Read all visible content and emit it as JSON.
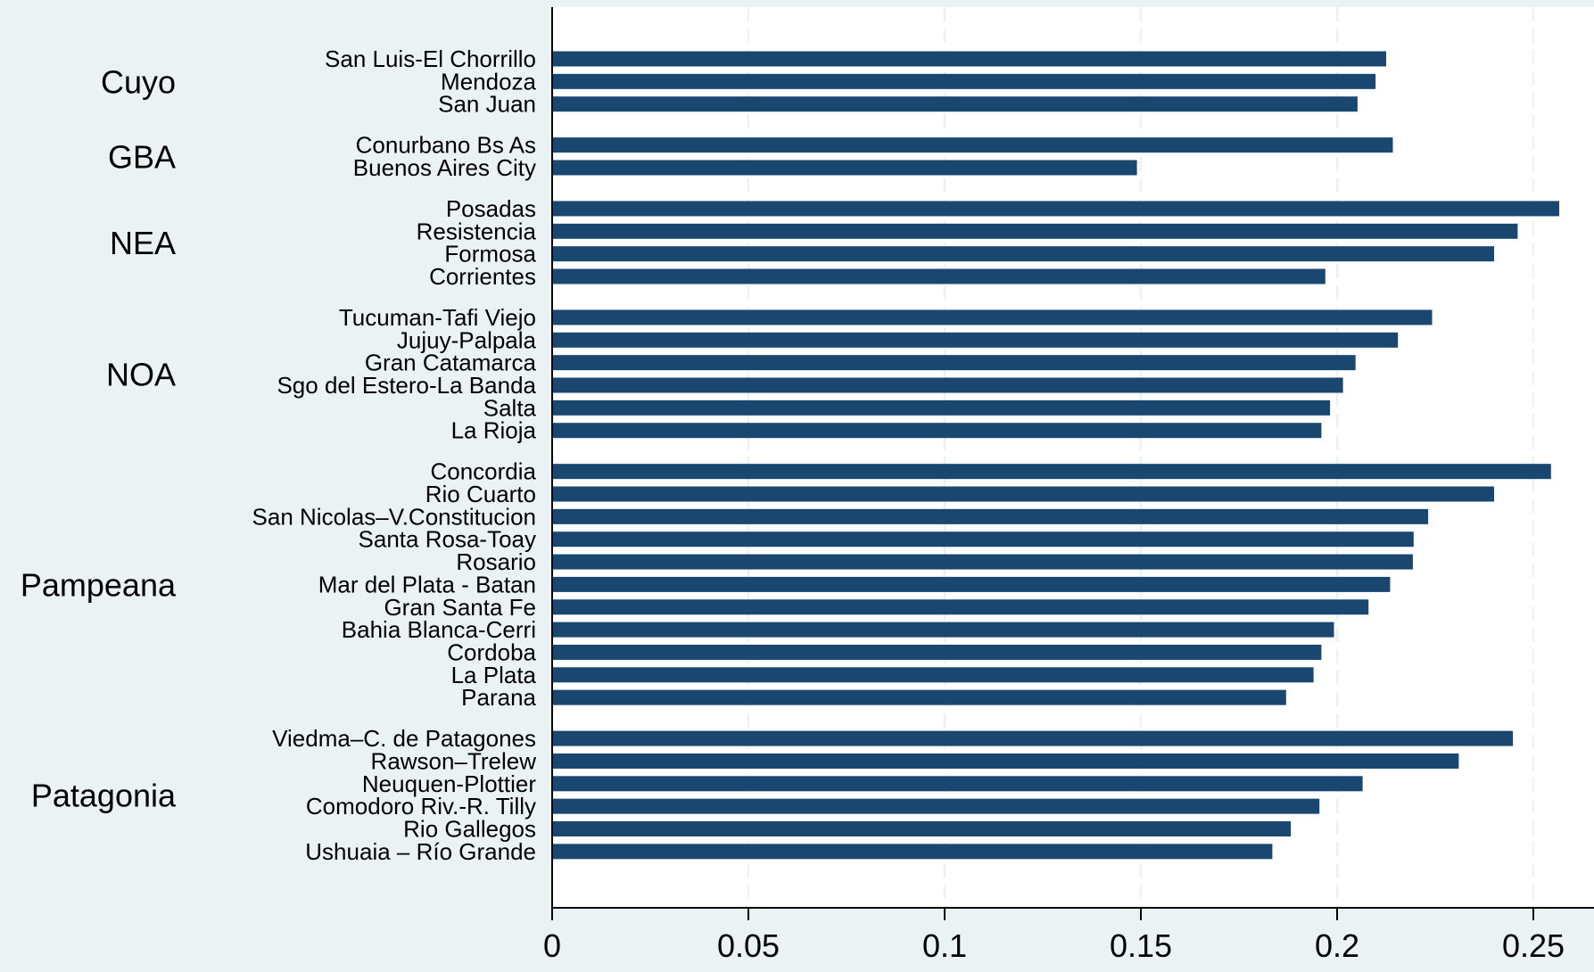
{
  "colors": {
    "background": "#eaf2f3",
    "plot_area": "#ffffff",
    "bar": "#1a476f",
    "gridline": "#eaf2f3",
    "axis": "#000000"
  },
  "chart_data": {
    "type": "bar",
    "orientation": "horizontal",
    "title": "",
    "xlabel": "",
    "ylabel": "",
    "xlim": [
      0,
      0.265
    ],
    "xticks": [
      0,
      0.05,
      0.1,
      0.15,
      0.2,
      0.25
    ],
    "xtick_labels": [
      "0",
      "0.05",
      "0.1",
      "0.15",
      "0.2",
      "0.25"
    ],
    "grid": "vertical dashed",
    "legend": "none",
    "groups": [
      {
        "name": "Cuyo",
        "categories": [
          "San Luis-El Chorrillo",
          "Mendoza",
          "San Juan"
        ],
        "values": [
          0.2125,
          0.2098,
          0.2052
        ]
      },
      {
        "name": "GBA",
        "categories": [
          "Conurbano Bs As",
          "Buenos Aires City"
        ],
        "values": [
          0.2142,
          0.149
        ]
      },
      {
        "name": "NEA",
        "categories": [
          "Posadas",
          "Resistencia",
          "Formosa",
          "Corrientes"
        ],
        "values": [
          0.2566,
          0.246,
          0.24,
          0.197
        ]
      },
      {
        "name": "NOA",
        "categories": [
          "Tucuman-Tafi Viejo",
          "Jujuy-Palpala",
          "Gran Catamarca",
          "Sgo del Estero-La Banda",
          "Salta",
          "La Rioja"
        ],
        "values": [
          0.2242,
          0.2155,
          0.2047,
          0.2015,
          0.1982,
          0.196
        ]
      },
      {
        "name": "Pampeana",
        "categories": [
          "Concordia",
          "Rio Cuarto",
          "San Nicolas–V.Constitucion",
          "Santa Rosa-Toay",
          "Rosario",
          "Mar del Plata - Batan",
          "Gran Santa Fe",
          "Bahia Blanca-Cerri",
          "Cordoba",
          "La Plata",
          "Parana"
        ],
        "values": [
          0.2545,
          0.24,
          0.2232,
          0.2195,
          0.2193,
          0.2135,
          0.208,
          0.1992,
          0.196,
          0.194,
          0.187
        ]
      },
      {
        "name": "Patagonia",
        "categories": [
          "Viedma–C. de Patagones",
          "Rawson–Trelew",
          "Neuquen-Plottier",
          "Comodoro Riv.-R. Tilly",
          "Rio Gallegos",
          "Ushuaia – Río Grande"
        ],
        "values": [
          0.2448,
          0.231,
          0.2065,
          0.1955,
          0.1882,
          0.1835
        ]
      }
    ]
  }
}
